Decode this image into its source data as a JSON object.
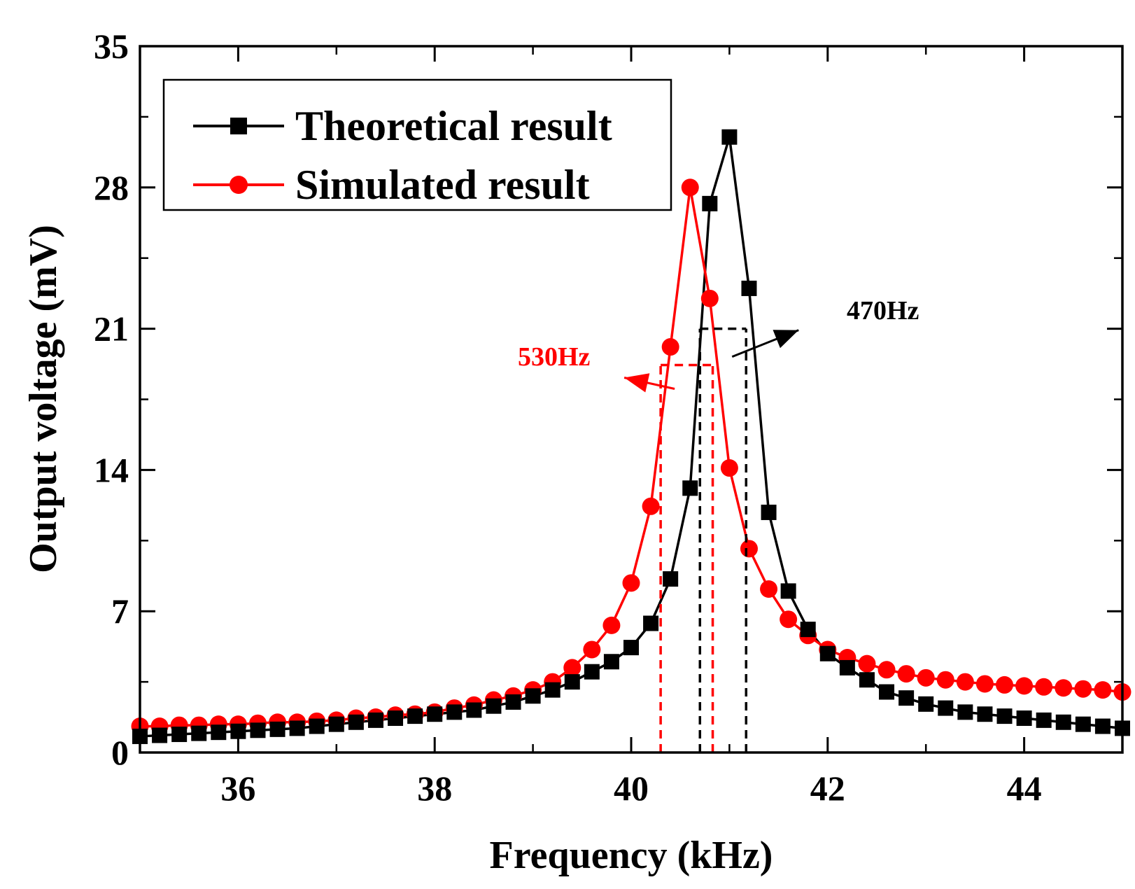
{
  "chart_data": {
    "type": "line",
    "xlabel": "Frequency (kHz)",
    "ylabel": "Output voltage (mV)",
    "xlim": [
      35,
      45
    ],
    "ylim": [
      0,
      35
    ],
    "xticks": [
      36,
      38,
      40,
      42,
      44
    ],
    "yticks": [
      0,
      7,
      14,
      21,
      28,
      35
    ],
    "x": [
      35.0,
      35.2,
      35.4,
      35.6,
      35.8,
      36.0,
      36.2,
      36.4,
      36.6,
      36.8,
      37.0,
      37.2,
      37.4,
      37.6,
      37.8,
      38.0,
      38.2,
      38.4,
      38.6,
      38.8,
      39.0,
      39.2,
      39.4,
      39.6,
      39.8,
      40.0,
      40.2,
      40.4,
      40.6,
      40.8,
      41.0,
      41.2,
      41.4,
      41.6,
      41.8,
      42.0,
      42.2,
      42.4,
      42.6,
      42.8,
      43.0,
      43.2,
      43.4,
      43.6,
      43.8,
      44.0,
      44.2,
      44.4,
      44.6,
      44.8,
      45.0
    ],
    "series": [
      {
        "name": "Theoretical result",
        "color": "#000000",
        "marker": "square",
        "values": [
          0.8,
          0.85,
          0.9,
          0.95,
          1.0,
          1.05,
          1.1,
          1.15,
          1.2,
          1.3,
          1.4,
          1.5,
          1.6,
          1.7,
          1.8,
          1.9,
          2.0,
          2.1,
          2.3,
          2.5,
          2.8,
          3.1,
          3.5,
          4.0,
          4.5,
          5.2,
          6.4,
          8.6,
          13.1,
          27.2,
          30.5,
          23.0,
          11.9,
          8.0,
          6.1,
          4.9,
          4.2,
          3.6,
          3.0,
          2.7,
          2.4,
          2.2,
          2.0,
          1.9,
          1.8,
          1.7,
          1.6,
          1.5,
          1.4,
          1.3,
          1.2
        ]
      },
      {
        "name": "Simulated result",
        "color": "#ff0000",
        "marker": "circle",
        "values": [
          1.3,
          1.3,
          1.35,
          1.35,
          1.4,
          1.4,
          1.45,
          1.5,
          1.5,
          1.55,
          1.6,
          1.7,
          1.75,
          1.85,
          1.9,
          2.0,
          2.2,
          2.35,
          2.6,
          2.8,
          3.1,
          3.5,
          4.2,
          5.1,
          6.3,
          8.4,
          12.2,
          20.1,
          28.0,
          22.5,
          14.1,
          10.1,
          8.1,
          6.6,
          5.8,
          5.1,
          4.7,
          4.4,
          4.1,
          3.9,
          3.7,
          3.6,
          3.5,
          3.4,
          3.35,
          3.3,
          3.25,
          3.2,
          3.15,
          3.1,
          3.0
        ]
      }
    ],
    "legend": {
      "position": "top-left",
      "entries": [
        "Theoretical result",
        "Simulated result"
      ]
    },
    "annotations": [
      {
        "text": "470Hz",
        "color": "#000000",
        "x_low": 40.7,
        "x_high": 41.17,
        "level": 21.0
      },
      {
        "text": "530Hz",
        "color": "#ff0000",
        "x_low": 40.3,
        "x_high": 40.83,
        "level": 19.2
      }
    ]
  }
}
